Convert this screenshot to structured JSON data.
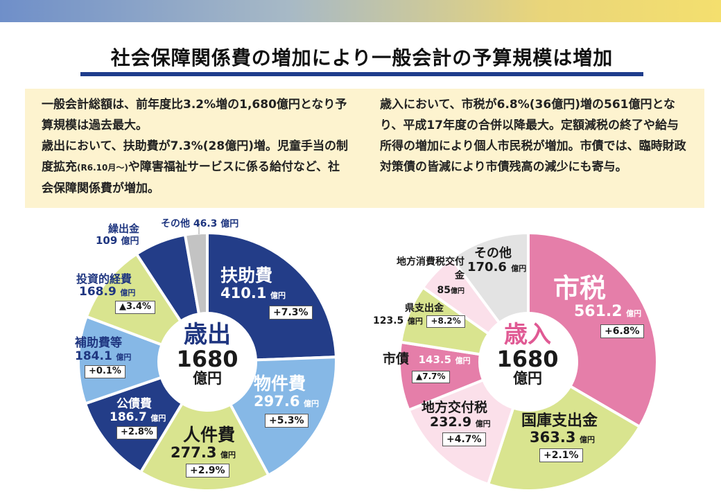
{
  "title": "社会保障関係費の増加により一般会計の予算規模は増加",
  "notes": {
    "left": {
      "p1": "一般会計総額は、前年度比3.2%増の1,680億円となり予算規模は過去最大。",
      "p2a": "歳出において、扶助費が7.3%(28億円)増。児童手当の制度拡充",
      "p2_small": "(R6.10月～)",
      "p2b": "や障害福祉サービスに係る給付など、社会保障関係費が増加。"
    },
    "right": {
      "p1": "歳入において、市税が6.8%(36億円)増の561億円となり、平成17年度の合併以降最大。定額減税の終了や給与所得の増加により個人市民税が増加。市債では、臨時財政対策債の皆減により市債残高の減少にも寄与。"
    }
  },
  "unit_label": "億円",
  "chart_data": [
    {
      "type": "pie",
      "center_label": "歳出",
      "center_value": "1680",
      "center_unit": "億円",
      "total": 1680,
      "slices": [
        {
          "name": "扶助費",
          "value": 410.1,
          "value_label": "410.1",
          "change": "+7.3%",
          "color": "#233d88"
        },
        {
          "name": "物件費",
          "value": 297.6,
          "value_label": "297.6",
          "change": "+5.3%",
          "color": "#86b8e6"
        },
        {
          "name": "人件費",
          "value": 277.3,
          "value_label": "277.3",
          "change": "+2.9%",
          "color": "#d9e48f"
        },
        {
          "name": "公債費",
          "value": 186.7,
          "value_label": "186.7",
          "change": "+2.8%",
          "color": "#233d88"
        },
        {
          "name": "補助費等",
          "value": 184.1,
          "value_label": "184.1",
          "change": "+0.1%",
          "color": "#86b8e6"
        },
        {
          "name": "投資的経費",
          "value": 168.9,
          "value_label": "168.9",
          "change": "▲3.4%",
          "color": "#d9e48f"
        },
        {
          "name": "繰出金",
          "value": 109,
          "value_label": "109",
          "change": "",
          "color": "#233d88"
        },
        {
          "name": "その他",
          "value": 46.3,
          "value_label": "46.3",
          "change": "",
          "color": "#c3c3c3"
        }
      ]
    },
    {
      "type": "pie",
      "center_label": "歳入",
      "center_value": "1680",
      "center_unit": "億円",
      "total": 1680,
      "slices": [
        {
          "name": "市税",
          "value": 561.2,
          "value_label": "561.2",
          "change": "+6.8%",
          "color": "#e57ea9"
        },
        {
          "name": "国庫支出金",
          "value": 363.3,
          "value_label": "363.3",
          "change": "+2.1%",
          "color": "#d9e48f"
        },
        {
          "name": "地方交付税",
          "value": 232.9,
          "value_label": "232.9",
          "change": "+4.7%",
          "color": "#fbe0ea"
        },
        {
          "name": "市債",
          "value": 143.5,
          "value_label": "143.5",
          "change": "▲7.7%",
          "color": "#e57ea9"
        },
        {
          "name": "県支出金",
          "value": 123.5,
          "value_label": "123.5",
          "change": "+8.2%",
          "color": "#d9e48f"
        },
        {
          "name": "地方消費税交付金",
          "value": 85,
          "value_label": "85",
          "change": "",
          "color": "#fbe0ea"
        },
        {
          "name": "その他",
          "value": 170.6,
          "value_label": "170.6",
          "change": "",
          "color": "#e3e3e3"
        }
      ]
    }
  ]
}
